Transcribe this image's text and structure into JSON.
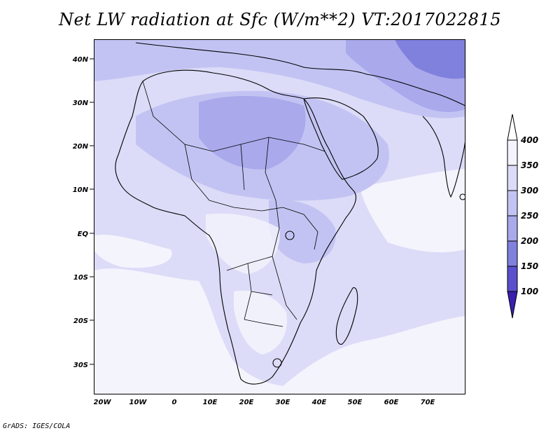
{
  "title": "Net LW radiation at Sfc (W/m**2) VT:2017022815",
  "footer": "GrADS: IGES/COLA",
  "lon_labels": [
    "20W",
    "10W",
    "0",
    "10E",
    "20E",
    "30E",
    "40E",
    "50E",
    "60E",
    "70E"
  ],
  "lat_labels": [
    "40N",
    "30N",
    "20N",
    "10N",
    "EQ",
    "10S",
    "20S",
    "30S"
  ],
  "colorbar": {
    "labels": [
      "400",
      "350",
      "300",
      "250",
      "200",
      "150",
      "100"
    ],
    "colors": [
      "#f4f4fd",
      "#dcdcf8",
      "#c3c3f3",
      "#a9a9ec",
      "#8080dd",
      "#5a4fcc",
      "#3a1fb0"
    ]
  },
  "colors": {
    "background": "#dcdcf8",
    "high": "#f4f4fd",
    "mid": "#c3c3f3",
    "low": "#a9a9ec",
    "lowest": "#8080dd",
    "land_border": "#000000"
  }
}
